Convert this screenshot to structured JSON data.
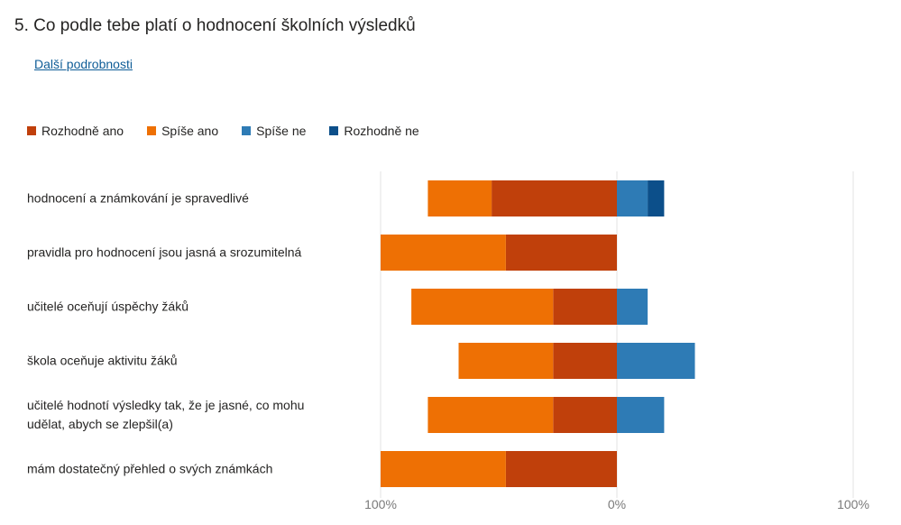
{
  "question": {
    "title": "5.  Co podle tebe platí o hodnocení školních výsledků",
    "details_link": "Další podrobnosti"
  },
  "chart_data": {
    "type": "bar",
    "orientation": "horizontal",
    "stacked": true,
    "diverging": true,
    "title": "",
    "xlabel": "",
    "ylabel": "",
    "xlim": [
      -100,
      100
    ],
    "x_tick_labels": [
      "100%",
      "0%",
      "100%"
    ],
    "legend_position": "top-left",
    "grid": true,
    "categories": [
      "hodnocení a známkování je spravedlivé",
      "pravidla pro hodnocení jsou jasná a srozumitelná",
      "učitelé oceňují úspěchy žáků",
      "škola oceňuje aktivitu žáků",
      "učitelé hodnotí výsledky tak, že je jasné, co mohu udělat, abych se zlepšil(a)",
      "mám dostatečný přehled o svých známkách"
    ],
    "series": [
      {
        "name": "Rozhodně ano",
        "side": "negative",
        "color": "#c0400b",
        "values": [
          53,
          47,
          27,
          27,
          27,
          47
        ]
      },
      {
        "name": "Spíše ano",
        "side": "negative",
        "color": "#ee7004",
        "values": [
          27,
          53,
          60,
          40,
          53,
          53
        ]
      },
      {
        "name": "Spíše ne",
        "side": "positive",
        "color": "#2e7bb5",
        "values": [
          13,
          0,
          13,
          33,
          20,
          0
        ]
      },
      {
        "name": "Rozhodně ne",
        "side": "positive",
        "color": "#0c4f8a",
        "values": [
          7,
          0,
          0,
          0,
          0,
          0
        ]
      }
    ]
  }
}
